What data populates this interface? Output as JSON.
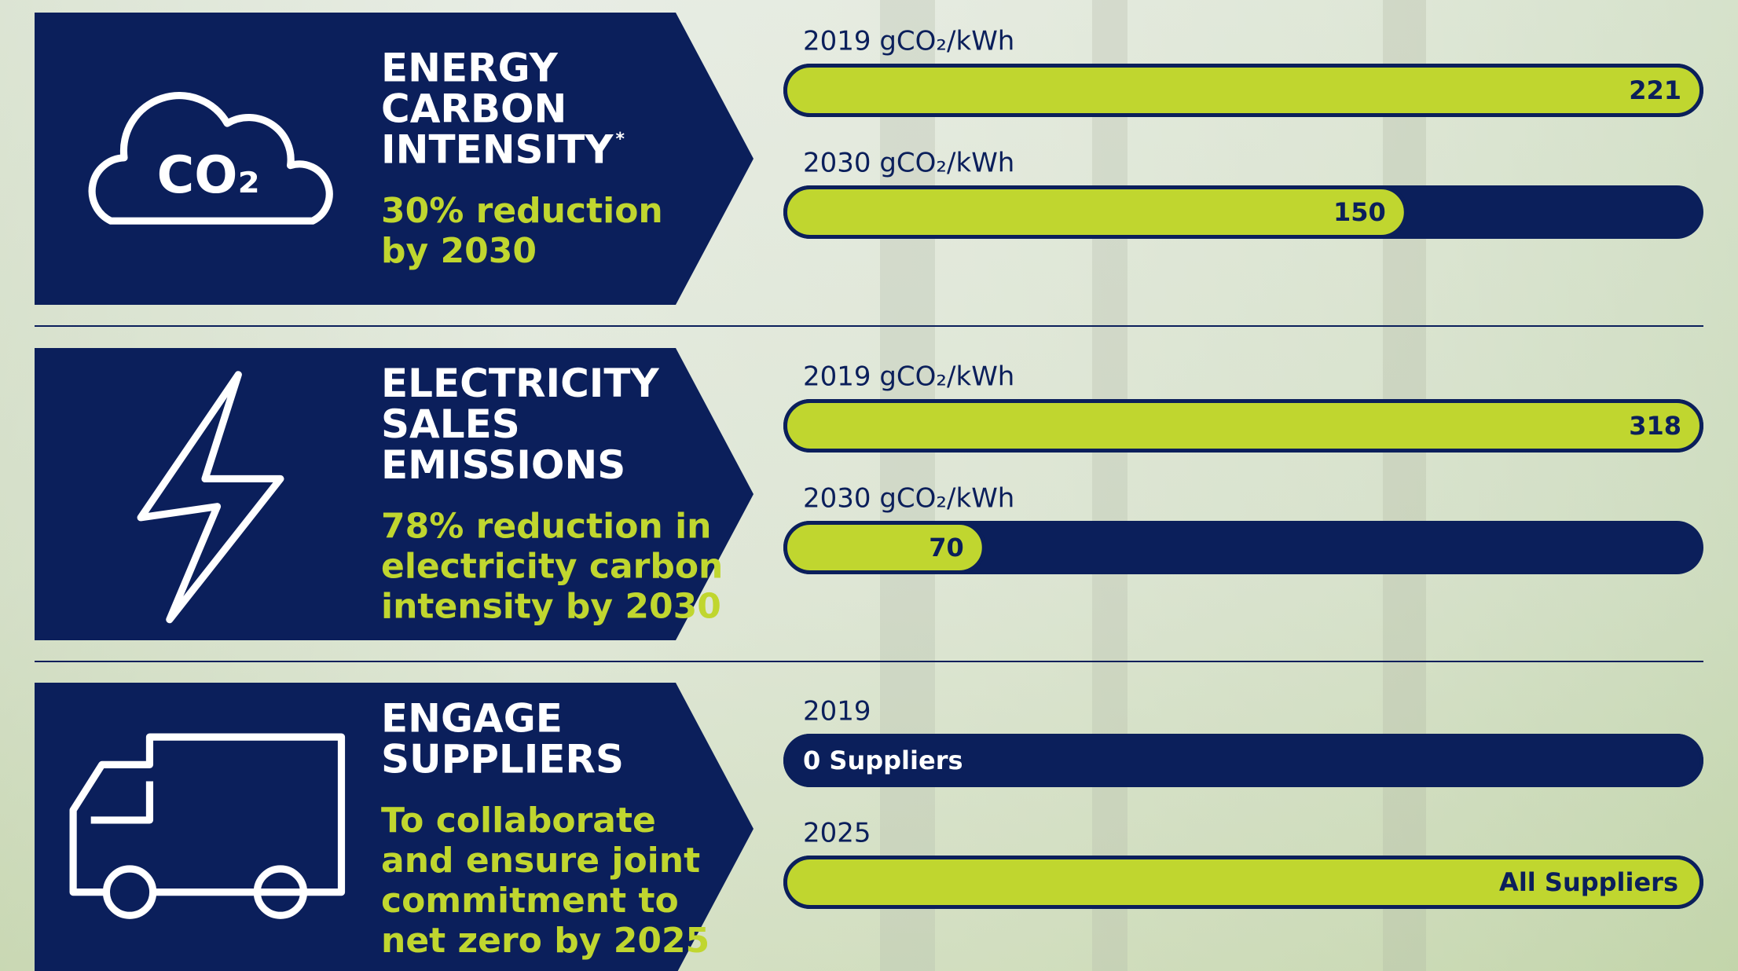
{
  "panels": [
    {
      "title": [
        "ENERGY",
        "CARBON",
        "INTENSITY"
      ],
      "title_mark": "*",
      "icon_text": "CO₂",
      "subtitle": [
        "30% reduction",
        "by 2030"
      ],
      "bars": [
        {
          "label": "2019 gCO₂/kWh",
          "value": 221,
          "color": "#c0d62f"
        },
        {
          "label": "2030 gCO₂/kWh",
          "value": 150,
          "color": "#c0d62f"
        }
      ]
    },
    {
      "title": [
        "ELECTRICITY",
        "SALES",
        "EMISSIONS"
      ],
      "subtitle": [
        "78% reduction in",
        "electricity carbon",
        "intensity by 2030"
      ],
      "bars": [
        {
          "label": "2019 gCO₂/kWh",
          "value": 318,
          "color": "#c0d62f"
        },
        {
          "label": "2030 gCO₂/kWh",
          "value": 70,
          "color": "#c0d62f"
        }
      ]
    },
    {
      "title": [
        "ENGAGE",
        "SUPPLIERS"
      ],
      "subtitle": [
        "To collaborate",
        "and ensure joint",
        "commitment to",
        "net zero by 2025"
      ],
      "bars": [
        {
          "label": "2019",
          "value_label": "0 Suppliers",
          "color": "#0b1f5b"
        },
        {
          "label": "2025",
          "value_label": "All Suppliers",
          "color": "#c0d62f"
        }
      ]
    }
  ]
}
